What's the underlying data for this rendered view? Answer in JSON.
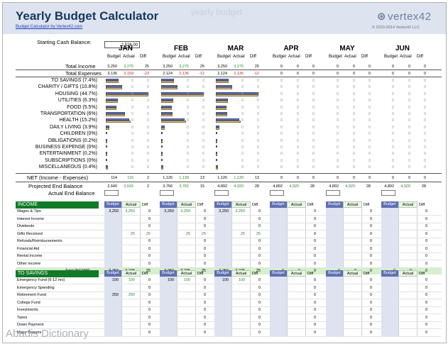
{
  "header": {
    "title": "Yearly Budget Calculator",
    "ghost_title": "yearly budget",
    "sub_link": "Budget Calculator by Vertex42.com",
    "logo": "vertex42",
    "copyright": "© 2010-2014 Vertex42 LLC"
  },
  "starting_cash": {
    "label": "Starting Cash Balance:",
    "value": "2,526.00"
  },
  "col_labels": {
    "budget": "Budget",
    "actual": "Actual",
    "diff": "Diff"
  },
  "months": [
    {
      "name": "JAN",
      "income": [
        "3,250",
        "3,275",
        "25"
      ],
      "expenses": [
        "3,136",
        "3,159",
        "-23"
      ],
      "net": [
        "114",
        "116",
        "2"
      ],
      "proj": [
        "2,640",
        "2,642",
        "2"
      ]
    },
    {
      "name": "FEB",
      "income": [
        "3,250",
        "3,275",
        "25"
      ],
      "expenses": [
        "2,124",
        "2,136",
        "-12"
      ],
      "net": [
        "1,126",
        "1,139",
        "13"
      ],
      "proj": [
        "3,766",
        "3,781",
        "15"
      ]
    },
    {
      "name": "MAR",
      "income": [
        "3,250",
        "3,275",
        "25"
      ],
      "expenses": [
        "2,124",
        "2,136",
        "-12"
      ],
      "net": [
        "1,126",
        "1,139",
        "13"
      ],
      "proj": [
        "4,892",
        "4,920",
        "28"
      ]
    },
    {
      "name": "APR",
      "income": [
        "0",
        "0",
        "0"
      ],
      "expenses": [
        "0",
        "0",
        "0"
      ],
      "net": [
        "0",
        "0",
        "0"
      ],
      "proj": [
        "4,892",
        "4,920",
        "28"
      ]
    },
    {
      "name": "MAY",
      "income": [
        "0",
        "0",
        "0"
      ],
      "expenses": [
        "0",
        "0",
        "0"
      ],
      "net": [
        "0",
        "0",
        "0"
      ],
      "proj": [
        "4,892",
        "4,920",
        "28"
      ]
    },
    {
      "name": "JUN",
      "income": [
        "0",
        "0",
        "0"
      ],
      "expenses": [
        "0",
        "0",
        "0"
      ],
      "net": [
        "0",
        "0",
        "0"
      ],
      "proj": [
        "4,892",
        "4,920",
        "28"
      ]
    }
  ],
  "summary_labels": {
    "income": "Total Income",
    "expenses": "Total Expenses",
    "net": "NET (Income - Expenses)",
    "proj": "Projected End Balance",
    "actual_end": "Actual End Balance"
  },
  "categories": [
    {
      "label": "TO SAVINGS (7.4%)",
      "bars": [
        [
          0.3,
          0.3
        ],
        [
          0.3,
          0.3
        ],
        [
          0.3,
          0.3
        ]
      ]
    },
    {
      "label": "CHARITY / GIFTS (10.8%)",
      "bars": [
        [
          0.38,
          0.38
        ],
        [
          0.38,
          0.38
        ],
        [
          0.38,
          0.38
        ]
      ]
    },
    {
      "label": "HOUSING (44.7%)",
      "bars": [
        [
          1.0,
          1.0
        ],
        [
          1.0,
          1.0
        ],
        [
          1.0,
          1.0
        ]
      ]
    },
    {
      "label": "UTILITIES (6.3%)",
      "bars": [
        [
          0.28,
          0.28
        ],
        [
          0.28,
          0.28
        ],
        [
          0.28,
          0.28
        ]
      ]
    },
    {
      "label": "FOOD (5.5%)",
      "bars": [
        [
          0.25,
          0.25
        ],
        [
          0.25,
          0.25
        ],
        [
          0.25,
          0.25
        ]
      ]
    },
    {
      "label": "TRANSPORTATION (6%)",
      "bars": [
        [
          0.45,
          0.45
        ],
        [
          0.27,
          0.27
        ],
        [
          0.27,
          0.27
        ]
      ]
    },
    {
      "label": "HEALTH (15.2%)",
      "bars": [
        [
          0.55,
          0.58
        ],
        [
          0.55,
          0.58
        ],
        [
          0.55,
          0.58
        ]
      ]
    },
    {
      "label": "DAILY LIVING (3.9%)",
      "bars": [
        [
          0.08,
          0.08
        ],
        [
          0.08,
          0.08
        ],
        [
          0.08,
          0.08
        ]
      ]
    },
    {
      "label": "CHILDREN (0%)",
      "bars": [
        [
          0,
          0
        ],
        [
          0,
          0
        ],
        [
          0,
          0
        ]
      ]
    },
    {
      "label": "OBLIGATIONS (0.2%)",
      "bars": [
        [
          0.02,
          0.02
        ],
        [
          0.02,
          0.02
        ],
        [
          0.02,
          0.02
        ]
      ]
    },
    {
      "label": "BUSINESS EXPENSE (0%)",
      "bars": [
        [
          0,
          0
        ],
        [
          0,
          0
        ],
        [
          0,
          0
        ]
      ]
    },
    {
      "label": "ENTERTAINMENT (0.2%)",
      "bars": [
        [
          0.02,
          0.02
        ],
        [
          0.02,
          0.02
        ],
        [
          0.02,
          0.02
        ]
      ]
    },
    {
      "label": "SUBSCRIPTIONS (0%)",
      "bars": [
        [
          0,
          0
        ],
        [
          0,
          0
        ],
        [
          0,
          0
        ]
      ]
    },
    {
      "label": "MISCELLANEOUS (0.4%)",
      "bars": [
        [
          0.05,
          0.05
        ],
        [
          0.05,
          0.05
        ],
        [
          0.05,
          0.05
        ]
      ]
    }
  ],
  "income_section": {
    "title": "INCOME",
    "rows": [
      {
        "label": "Wages & Tips",
        "vals": [
          [
            "3,250",
            "3,250",
            "0"
          ],
          [
            "3,250",
            "3,250",
            "0"
          ],
          [
            "3,250",
            "3,250",
            "0"
          ],
          [
            "",
            "",
            "0"
          ],
          [
            "",
            "",
            "0"
          ],
          [
            "",
            "",
            "0"
          ]
        ]
      },
      {
        "label": "Interest Income",
        "vals": [
          [
            "",
            "",
            "0"
          ],
          [
            "",
            "",
            "0"
          ],
          [
            "",
            "",
            "0"
          ],
          [
            "",
            "",
            "0"
          ],
          [
            "",
            "",
            "0"
          ],
          [
            "",
            "",
            "0"
          ]
        ]
      },
      {
        "label": "Dividends",
        "vals": [
          [
            "",
            "",
            "0"
          ],
          [
            "",
            "",
            "0"
          ],
          [
            "",
            "",
            "0"
          ],
          [
            "",
            "",
            "0"
          ],
          [
            "",
            "",
            "0"
          ],
          [
            "",
            "",
            "0"
          ]
        ]
      },
      {
        "label": "Gifts Received",
        "vals": [
          [
            "",
            "25",
            "25"
          ],
          [
            "",
            "25",
            "25"
          ],
          [
            "",
            "25",
            "25"
          ],
          [
            "",
            "",
            "0"
          ],
          [
            "",
            "",
            "0"
          ],
          [
            "",
            "",
            "0"
          ]
        ]
      },
      {
        "label": "Refunds/Reimbursements",
        "vals": [
          [
            "",
            "",
            "0"
          ],
          [
            "",
            "",
            "0"
          ],
          [
            "",
            "",
            "0"
          ],
          [
            "",
            "",
            "0"
          ],
          [
            "",
            "",
            "0"
          ],
          [
            "",
            "",
            "0"
          ]
        ]
      },
      {
        "label": "Financial Aid",
        "vals": [
          [
            "",
            "",
            "0"
          ],
          [
            "",
            "",
            "0"
          ],
          [
            "",
            "",
            "0"
          ],
          [
            "",
            "",
            "0"
          ],
          [
            "",
            "",
            "0"
          ],
          [
            "",
            "",
            "0"
          ]
        ]
      },
      {
        "label": "Rental Income",
        "vals": [
          [
            "",
            "",
            "0"
          ],
          [
            "",
            "",
            "0"
          ],
          [
            "",
            "",
            "0"
          ],
          [
            "",
            "",
            "0"
          ],
          [
            "",
            "",
            "0"
          ],
          [
            "",
            "",
            "0"
          ]
        ]
      },
      {
        "label": "Other Income",
        "vals": [
          [
            "",
            "",
            "0"
          ],
          [
            "",
            "",
            "0"
          ],
          [
            "",
            "",
            "0"
          ],
          [
            "",
            "",
            "0"
          ],
          [
            "",
            "",
            "0"
          ],
          [
            "",
            "",
            "0"
          ]
        ]
      }
    ],
    "total_label": "Total INCOME",
    "totals": [
      [
        "3,250",
        "3,275",
        "25"
      ],
      [
        "3,250",
        "3,275",
        "25"
      ],
      [
        "3,250",
        "3,275",
        "25"
      ],
      [
        "0",
        "0",
        "0"
      ],
      [
        "0",
        "0",
        "0"
      ],
      [
        "0",
        "0",
        "0"
      ]
    ]
  },
  "savings_section": {
    "title": "TO SAVINGS",
    "rows": [
      {
        "label": "Emergency Fund (6-12 mo)",
        "vals": [
          [
            "100",
            "100",
            "0"
          ],
          [
            "100",
            "100",
            "0"
          ],
          [
            "100",
            "100",
            "0"
          ],
          [
            "",
            "",
            "0"
          ],
          [
            "",
            "",
            "0"
          ],
          [
            "",
            "",
            "0"
          ]
        ]
      },
      {
        "label": "Emergency Spending",
        "vals": [
          [
            "",
            "",
            "0"
          ],
          [
            "",
            "",
            "0"
          ],
          [
            "",
            "",
            "0"
          ],
          [
            "",
            "",
            "0"
          ],
          [
            "",
            "",
            "0"
          ],
          [
            "",
            "",
            "0"
          ]
        ]
      },
      {
        "label": "Retirement Fund",
        "vals": [
          [
            "250",
            "250",
            "0"
          ],
          [
            "",
            "",
            "0"
          ],
          [
            "",
            "",
            "0"
          ],
          [
            "",
            "",
            "0"
          ],
          [
            "",
            "",
            "0"
          ],
          [
            "",
            "",
            "0"
          ]
        ]
      },
      {
        "label": "College Fund",
        "vals": [
          [
            "",
            "",
            "0"
          ],
          [
            "",
            "",
            "0"
          ],
          [
            "",
            "",
            "0"
          ],
          [
            "",
            "",
            "0"
          ],
          [
            "",
            "",
            "0"
          ],
          [
            "",
            "",
            "0"
          ]
        ]
      },
      {
        "label": "Investments",
        "vals": [
          [
            "",
            "",
            "0"
          ],
          [
            "",
            "",
            "0"
          ],
          [
            "",
            "",
            "0"
          ],
          [
            "",
            "",
            "0"
          ],
          [
            "",
            "",
            "0"
          ],
          [
            "",
            "",
            "0"
          ]
        ]
      },
      {
        "label": "Taxes",
        "vals": [
          [
            "",
            "",
            "0"
          ],
          [
            "",
            "",
            "0"
          ],
          [
            "",
            "",
            "0"
          ],
          [
            "",
            "",
            "0"
          ],
          [
            "",
            "",
            "0"
          ],
          [
            "",
            "",
            "0"
          ]
        ]
      },
      {
        "label": "Down Payment",
        "vals": [
          [
            "",
            "",
            "0"
          ],
          [
            "",
            "",
            "0"
          ],
          [
            "",
            "",
            "0"
          ],
          [
            "",
            "",
            "0"
          ],
          [
            "",
            "",
            "0"
          ],
          [
            "",
            "",
            "0"
          ]
        ]
      },
      {
        "label": "Major Repairs",
        "vals": [
          [
            "",
            "",
            "0"
          ],
          [
            "",
            "",
            "0"
          ],
          [
            "",
            "",
            "0"
          ],
          [
            "",
            "",
            "0"
          ],
          [
            "",
            "",
            "0"
          ],
          [
            "",
            "",
            "0"
          ]
        ]
      }
    ]
  },
  "watermark": "Abadis Dictionary"
}
